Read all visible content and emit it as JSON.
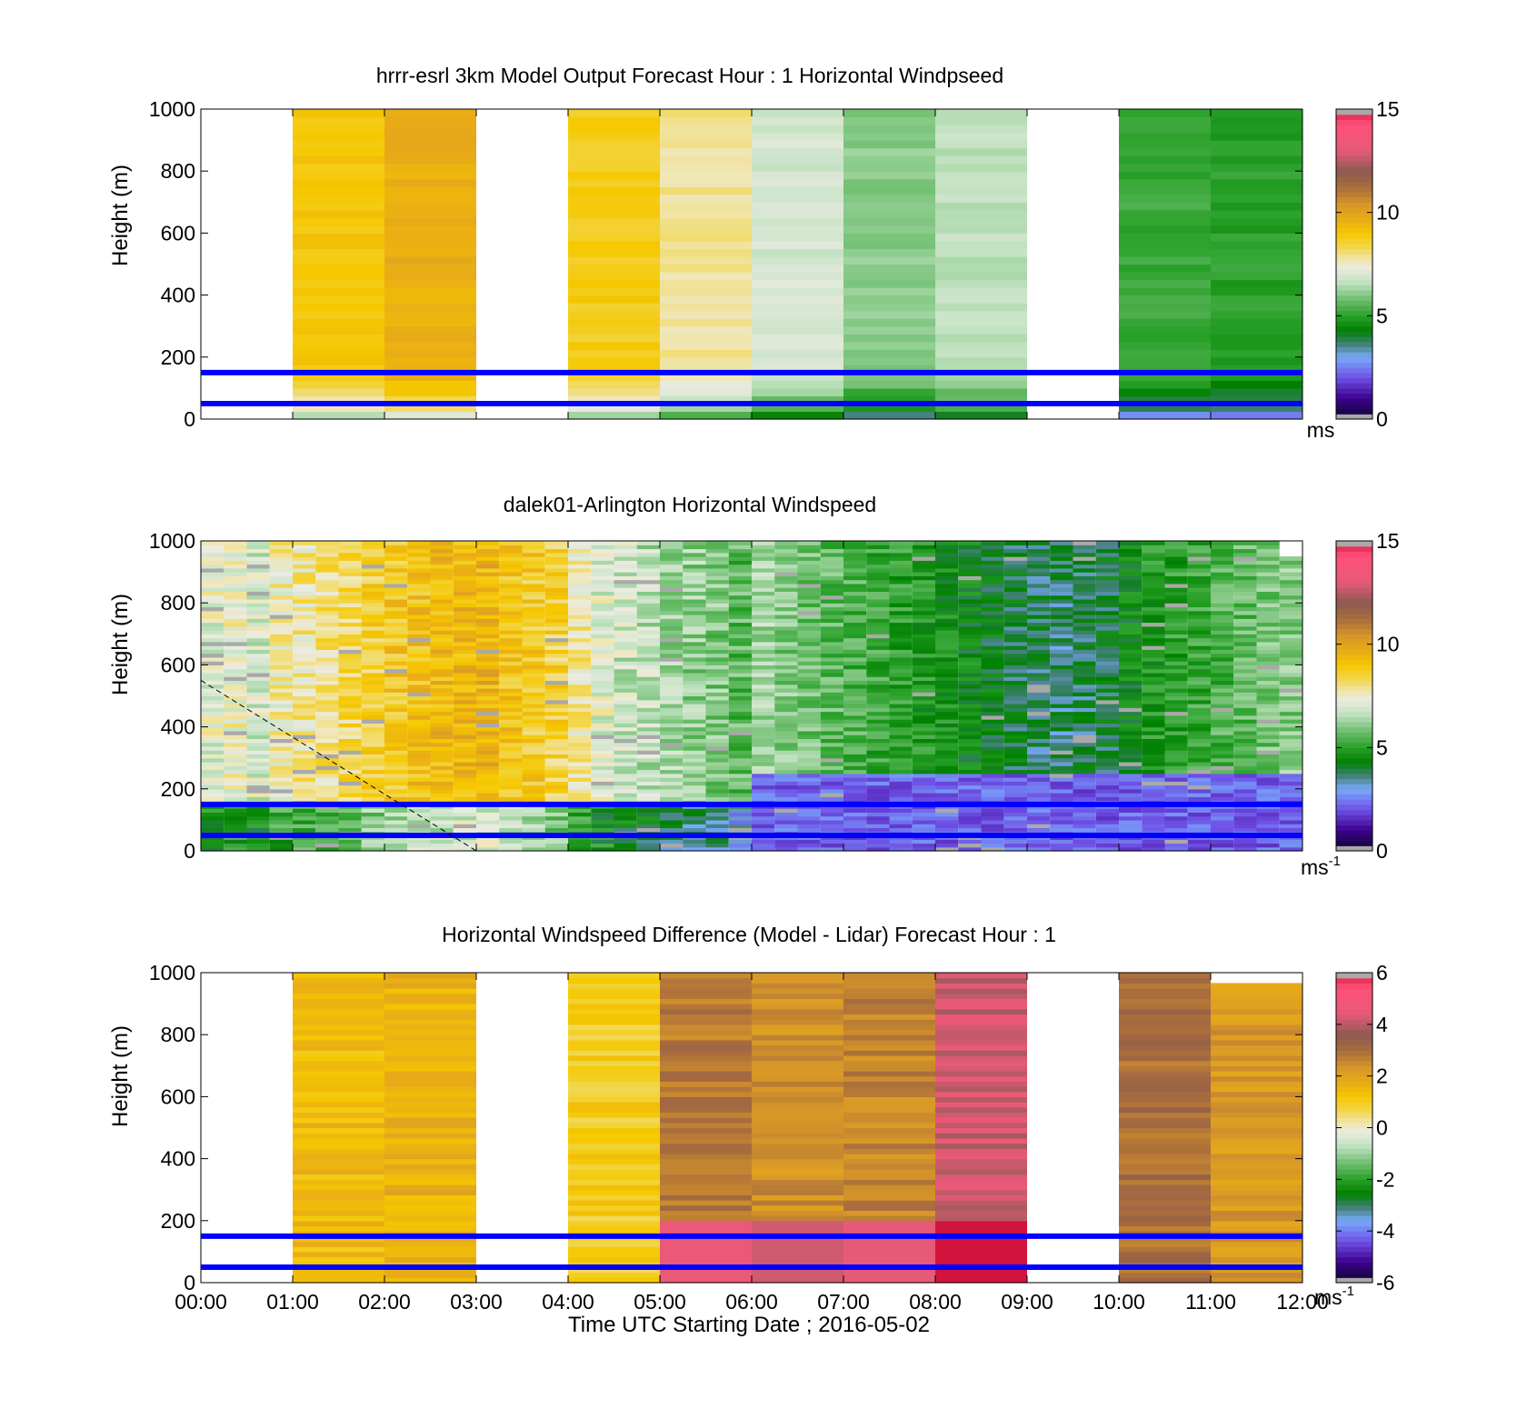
{
  "colors": {
    "overlay_line": "#0000ff",
    "grey": "#a9a9a9"
  },
  "x_ticks": [
    "00:00",
    "01:00",
    "02:00",
    "03:00",
    "04:00",
    "05:00",
    "06:00",
    "07:00",
    "08:00",
    "09:00",
    "10:00",
    "11:00",
    "12:00"
  ],
  "x_label": "Time UTC  Starting Date ; 2016-05-02",
  "y_label": "Height (m)",
  "chart_data": [
    {
      "type": "heatmap",
      "title": "hrrr-esrl 3km Model Output   Forecast Hour : 1 Horizontal Windpseed",
      "xlabel": "",
      "ylabel": "Height (m)",
      "xlim": [
        "00:00",
        "12:00"
      ],
      "ylim": [
        0,
        1000
      ],
      "yticks": [
        0,
        200,
        400,
        600,
        800,
        1000
      ],
      "colorbar": {
        "range": [
          0,
          15
        ],
        "ticks": [
          "0",
          "5",
          "10",
          "15"
        ],
        "unit": "ms",
        "unit_sup": ""
      },
      "overlay_heights_m": [
        50,
        150
      ],
      "hourly_columns": [
        {
          "hour": "00:00",
          "value": null
        },
        {
          "hour": "01:00",
          "value": 9.0
        },
        {
          "hour": "02:00",
          "value": 9.6
        },
        {
          "hour": "03:00",
          "value": null
        },
        {
          "hour": "04:00",
          "value": 8.8
        },
        {
          "hour": "05:00",
          "value": 7.9
        },
        {
          "hour": "06:00",
          "value": 6.9
        },
        {
          "hour": "07:00",
          "value": 6.1
        },
        {
          "hour": "08:00",
          "value": 6.6
        },
        {
          "hour": "09:00",
          "value": null
        },
        {
          "hour": "10:00",
          "value": 5.2
        },
        {
          "hour": "11:00",
          "value": 5.0
        }
      ]
    },
    {
      "type": "heatmap",
      "title": "dalek01-Arlington  Horizontal Windspeed",
      "xlabel": "",
      "ylabel": "Height (m)",
      "xlim": [
        "00:00",
        "12:00"
      ],
      "ylim": [
        0,
        1000
      ],
      "yticks": [
        0,
        200,
        400,
        600,
        800,
        1000
      ],
      "colorbar": {
        "range": [
          0,
          15
        ],
        "ticks": [
          "0",
          "5",
          "10",
          "15"
        ],
        "unit": "ms",
        "unit_sup": "-1"
      },
      "overlay_heights_m": [
        50,
        150
      ],
      "profile_interval_min": 15,
      "profiles_mean_speed": [
        7.2,
        7.4,
        7.0,
        7.6,
        7.8,
        8.0,
        8.3,
        8.6,
        8.9,
        9.1,
        9.3,
        9.4,
        9.5,
        9.0,
        8.8,
        8.5,
        7.8,
        7.1,
        6.8,
        6.6,
        6.4,
        6.2,
        6.0,
        5.6,
        5.2,
        4.8,
        4.6,
        4.4,
        4.2,
        4.0,
        3.8,
        3.6,
        3.4,
        3.2,
        3.0,
        2.8,
        2.6,
        2.5,
        2.6,
        2.8,
        3.2,
        3.6,
        3.8,
        4.0,
        4.2,
        4.4,
        4.6,
        4.8
      ],
      "annotation": "dashed boundary-layer line from 550 m at 00:00 to 0 m at 03:00"
    },
    {
      "type": "heatmap",
      "title": "Horizontal Windspeed Difference (Model - Lidar) Forecast Hour : 1",
      "xlabel": "Time UTC  Starting Date ; 2016-05-02",
      "ylabel": "Height (m)",
      "xlim": [
        "00:00",
        "12:00"
      ],
      "ylim": [
        0,
        1000
      ],
      "yticks": [
        0,
        200,
        400,
        600,
        800,
        1000
      ],
      "colorbar": {
        "range": [
          -6,
          6
        ],
        "ticks": [
          "-6",
          "-4",
          "-2",
          "0",
          "2",
          "4",
          "6"
        ],
        "unit": "ms",
        "unit_sup": "-1"
      },
      "overlay_heights_m": [
        50,
        150
      ],
      "hourly_columns": [
        {
          "hour": "00:00",
          "value": null
        },
        {
          "hour": "01:00",
          "value": 1.4
        },
        {
          "hour": "02:00",
          "value": 1.6
        },
        {
          "hour": "03:00",
          "value": null
        },
        {
          "hour": "04:00",
          "value": 1.0
        },
        {
          "hour": "05:00",
          "value": 2.8
        },
        {
          "hour": "06:00",
          "value": 2.4
        },
        {
          "hour": "07:00",
          "value": 2.6
        },
        {
          "hour": "08:00",
          "value": 4.2
        },
        {
          "hour": "09:00",
          "value": null
        },
        {
          "hour": "10:00",
          "value": 3.0
        },
        {
          "hour": "11:00",
          "value": 2.2
        }
      ]
    }
  ]
}
